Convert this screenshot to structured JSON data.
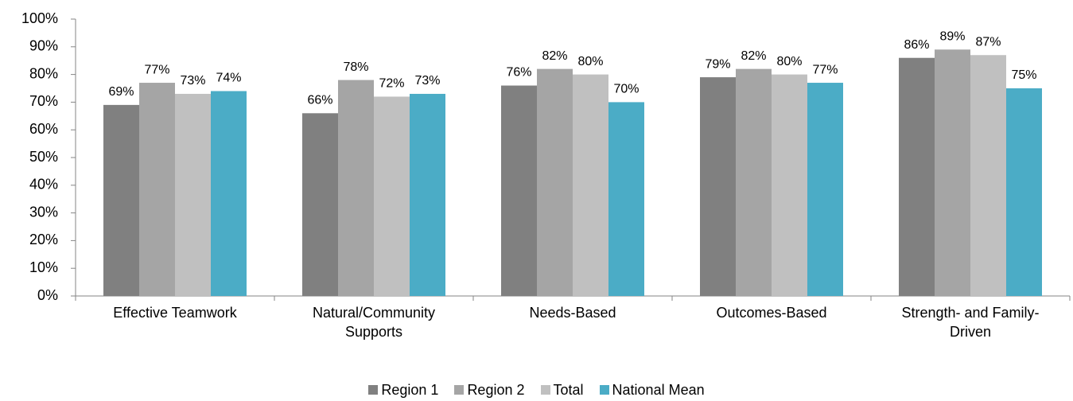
{
  "chart_data": {
    "type": "bar",
    "categories": [
      "Effective Teamwork",
      "Natural/Community Supports",
      "Needs-Based",
      "Outcomes-Based",
      "Strength- and Family-Driven"
    ],
    "series": [
      {
        "name": "Region 1",
        "color": "#808080",
        "values": [
          69,
          66,
          76,
          79,
          86
        ],
        "value_labels": [
          "69%",
          "66%",
          "76%",
          "79%",
          "86%"
        ]
      },
      {
        "name": "Region 2",
        "color": "#a5a5a5",
        "values": [
          77,
          78,
          82,
          82,
          89
        ],
        "value_labels": [
          "77%",
          "78%",
          "82%",
          "82%",
          "89%"
        ]
      },
      {
        "name": "Total",
        "color": "#c0c0c0",
        "values": [
          73,
          72,
          80,
          80,
          87
        ],
        "value_labels": [
          "73%",
          "72%",
          "80%",
          "80%",
          "87%"
        ]
      },
      {
        "name": "National Mean",
        "color": "#4bacc6",
        "values": [
          74,
          73,
          70,
          77,
          75
        ],
        "value_labels": [
          "74%",
          "73%",
          "70%",
          "77%",
          "75%"
        ]
      }
    ],
    "ylim": [
      0,
      100
    ],
    "yticks": [
      {
        "value": 0,
        "label": "0%"
      },
      {
        "value": 10,
        "label": "10%"
      },
      {
        "value": 20,
        "label": "20%"
      },
      {
        "value": 30,
        "label": "30%"
      },
      {
        "value": 40,
        "label": "40%"
      },
      {
        "value": 50,
        "label": "50%"
      },
      {
        "value": 60,
        "label": "60%"
      },
      {
        "value": 70,
        "label": "70%"
      },
      {
        "value": 80,
        "label": "80%"
      },
      {
        "value": 90,
        "label": "90%"
      },
      {
        "value": 100,
        "label": "100%"
      }
    ],
    "grid": false,
    "legend": "bottom"
  }
}
